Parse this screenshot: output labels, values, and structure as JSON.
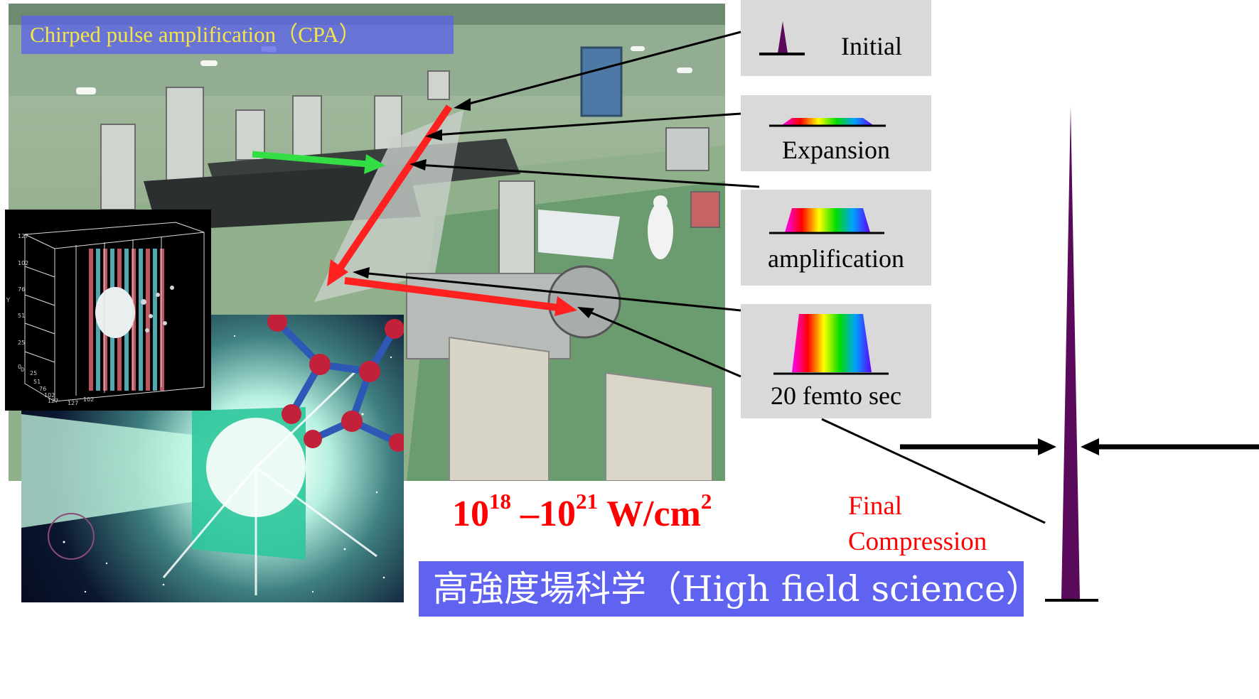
{
  "header_banner": {
    "text": "Chirped pulse amplification（CPA）"
  },
  "stages": [
    {
      "label": "Initial"
    },
    {
      "label": "Expansion"
    },
    {
      "label": "amplification"
    },
    {
      "label": "20 femto sec"
    }
  ],
  "intensity": {
    "base1": "10",
    "exp1": "18",
    "dash": " –",
    "base2": "10",
    "exp2": "21",
    "unit": " W/cm",
    "unit_exp": "2"
  },
  "final_compression": {
    "line1": "Final",
    "line2": "Compression"
  },
  "footer_banner": {
    "text": "高強度場科学（High field science）"
  },
  "simulation_axes": {
    "y_ticks": [
      "127",
      "102",
      "76",
      "51",
      "25",
      "0"
    ],
    "x_ticks": [
      "0",
      "25",
      "51",
      "76",
      "102",
      "127"
    ],
    "z_ticks": [
      "0",
      "25",
      "51",
      "76",
      "102",
      "127"
    ],
    "y_label": "Y"
  },
  "colors": {
    "laser_path_red": "#ff2020",
    "seed_green": "#33dd44",
    "pulse_purple": "#5a0a5a",
    "accent_red_text": "#ff0000",
    "banner_blue": "#5f63f0",
    "banner_text_yellow": "#f5e54a",
    "stage_box_gray": "#d9d9d9"
  }
}
